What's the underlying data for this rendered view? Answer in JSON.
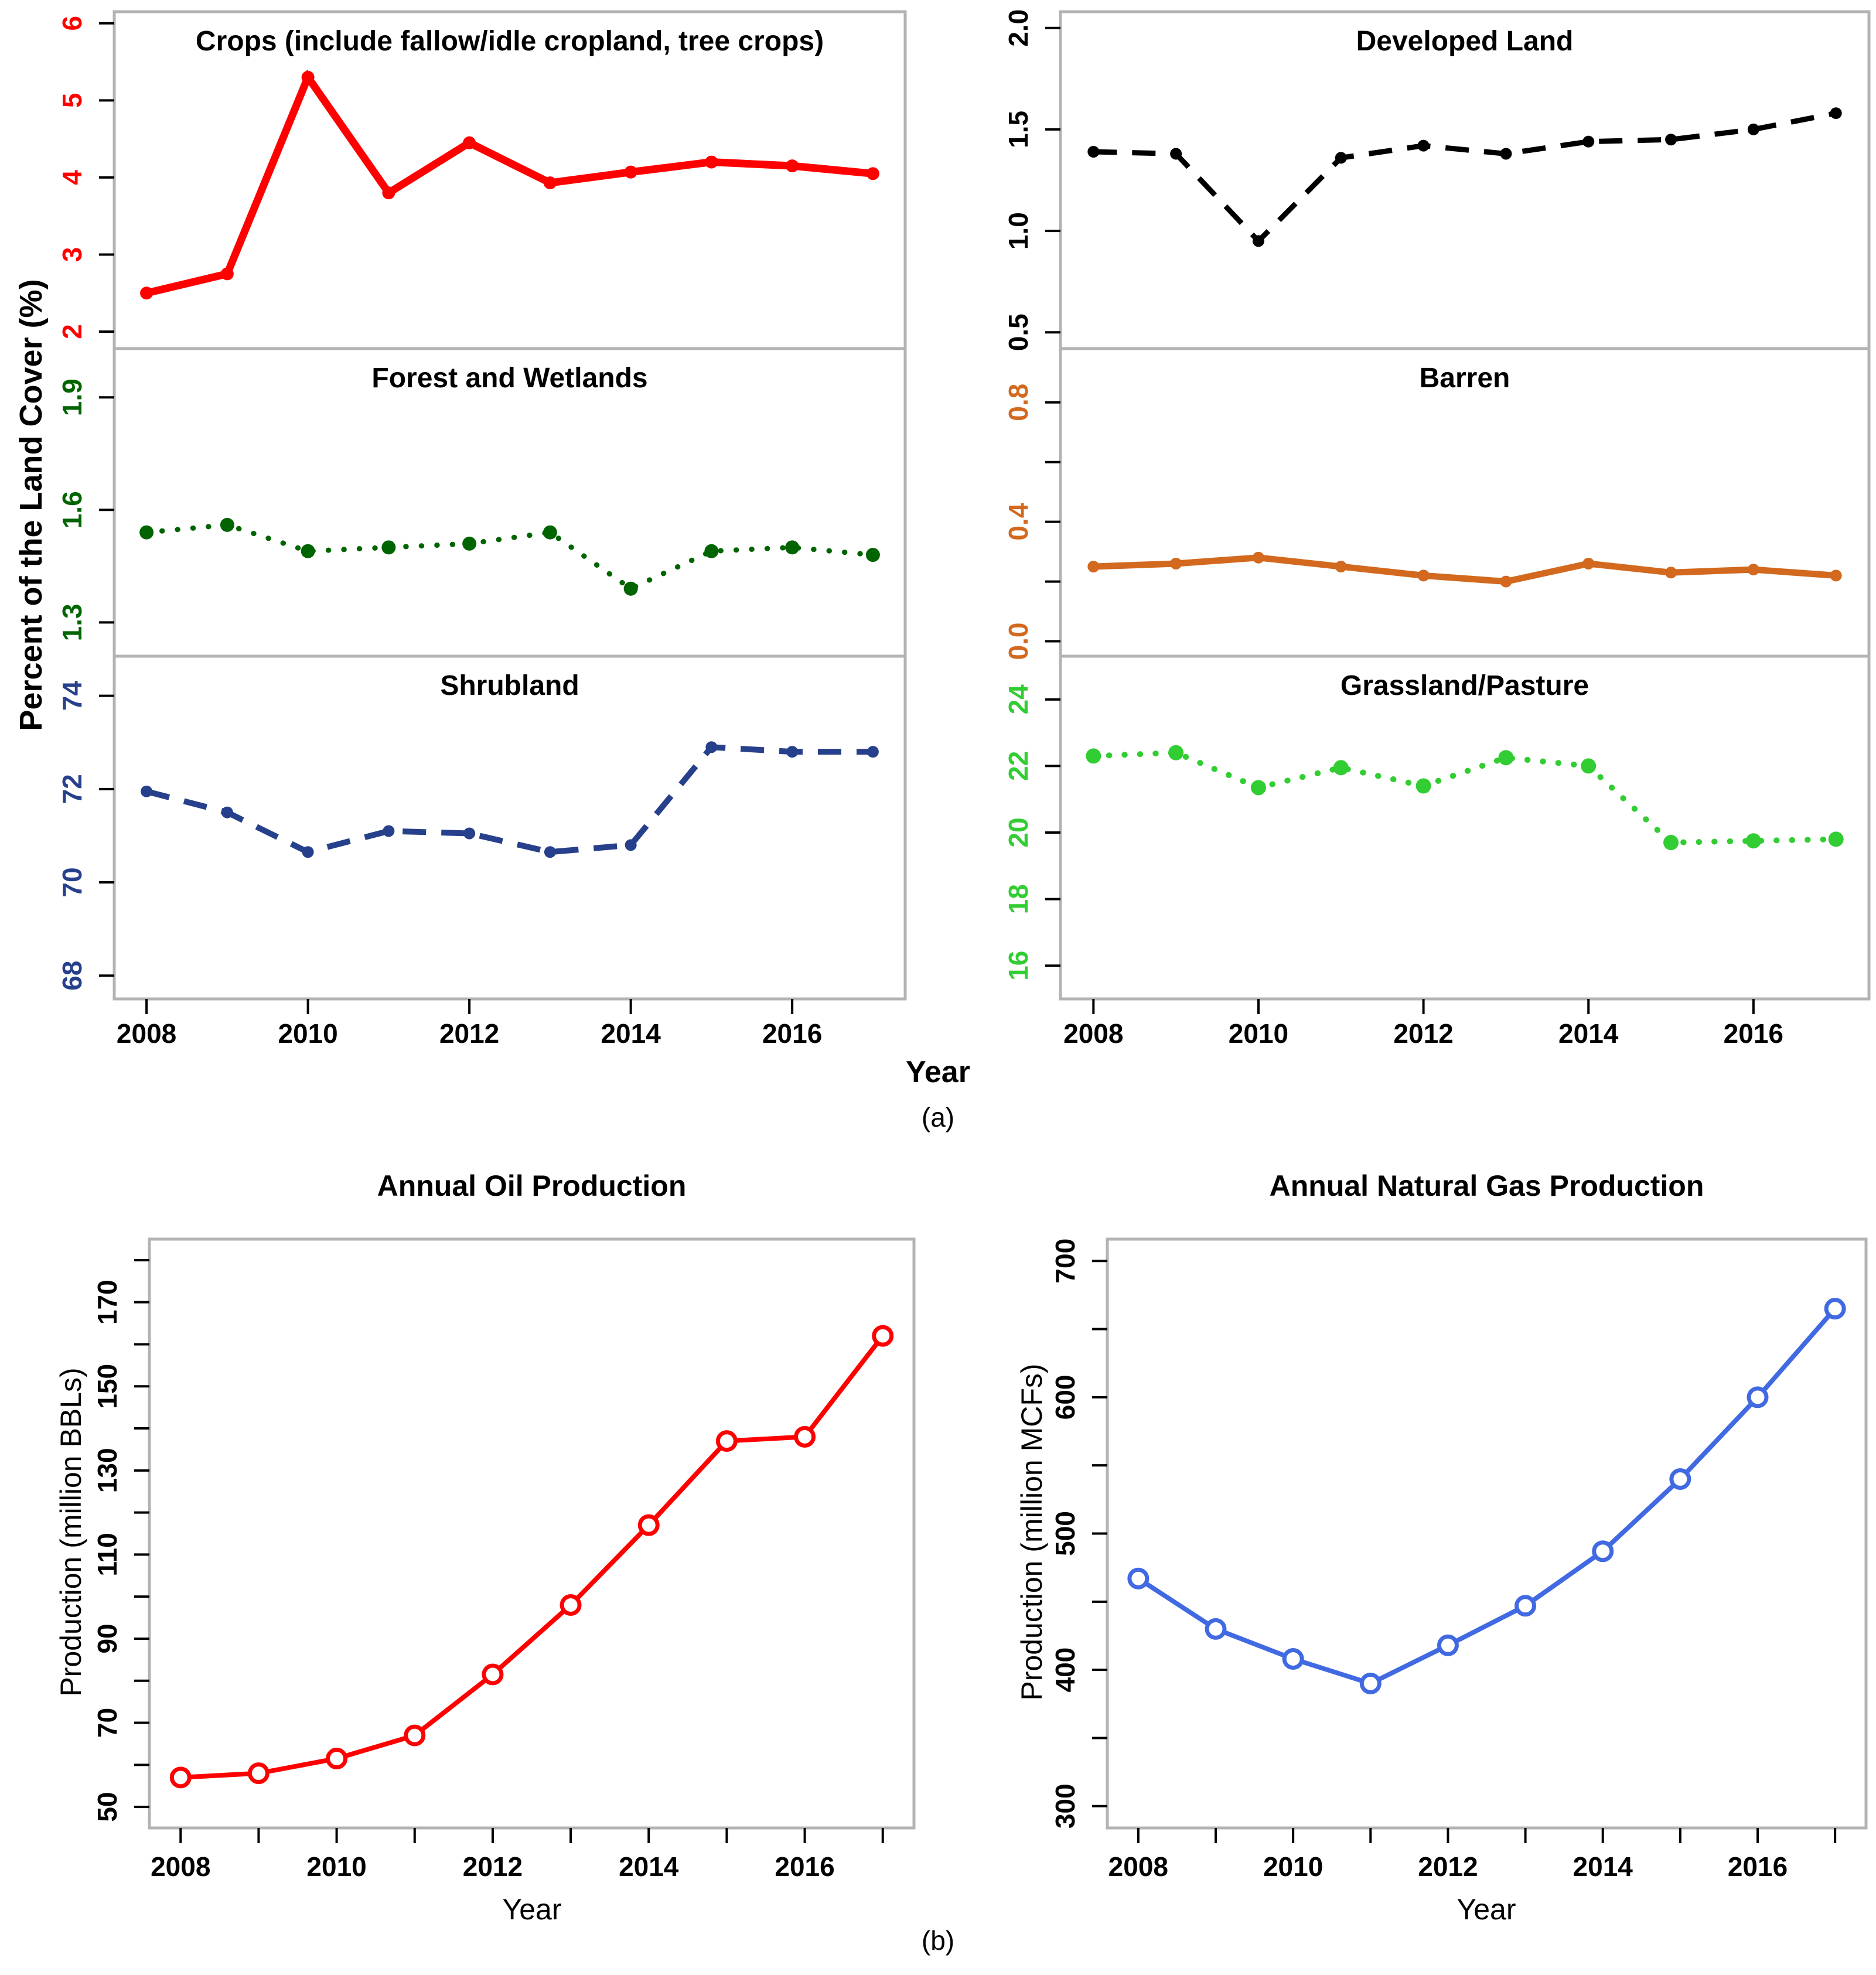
{
  "figure": {
    "panel_a_label": "(a)",
    "panel_b_label": "(b)",
    "panel_a": {
      "shared_y_label": "Percent of the Land Cover (%)",
      "x_label": "Year"
    },
    "panel_b": {
      "oil": {
        "y_label": "Production (million BBLs)",
        "x_label": "Year"
      },
      "gas": {
        "y_label": "Production (million MCFs)",
        "x_label": "Year"
      }
    }
  },
  "chart_data": [
    {
      "id": "crops",
      "type": "line",
      "panel": "a",
      "title": "Crops (include fallow/idle cropland, tree crops)",
      "x": [
        2008,
        2009,
        2010,
        2011,
        2012,
        2013,
        2014,
        2015,
        2016,
        2017
      ],
      "values": [
        2.5,
        2.75,
        5.3,
        3.8,
        4.45,
        3.93,
        4.07,
        4.2,
        4.15,
        4.05
      ],
      "color": "#ff0000",
      "line_style": "solid",
      "marker": "filled-circle",
      "xlim": [
        2007.6,
        2017.4
      ],
      "ylim": [
        1.78,
        6.15
      ],
      "yticks": [
        2,
        3,
        4,
        5,
        6
      ],
      "ytick_labels": [
        "2",
        "3",
        "4",
        "5",
        "6"
      ],
      "yticks_minor": [],
      "ytick_color": "#ff0000",
      "xticks": [
        2008,
        2010,
        2012,
        2014,
        2016
      ],
      "xtick_labels": [
        "2008",
        "2010",
        "2012",
        "2014",
        "2016"
      ],
      "xticks_minor": []
    },
    {
      "id": "developed",
      "type": "line",
      "panel": "a",
      "title": "Developed Land",
      "x": [
        2008,
        2009,
        2010,
        2011,
        2012,
        2013,
        2014,
        2015,
        2016,
        2017
      ],
      "values": [
        1.39,
        1.38,
        0.95,
        1.36,
        1.42,
        1.38,
        1.44,
        1.45,
        1.5,
        1.58
      ],
      "color": "#000000",
      "line_style": "dashed",
      "marker": "filled-circle",
      "xlim": [
        2007.6,
        2017.4
      ],
      "ylim": [
        0.42,
        2.08
      ],
      "yticks": [
        0.5,
        1.0,
        1.5,
        2.0
      ],
      "ytick_labels": [
        "0.5",
        "1.0",
        "1.5",
        "2.0"
      ],
      "yticks_minor": [],
      "ytick_color": "#000000",
      "xticks": [
        2008,
        2010,
        2012,
        2014,
        2016
      ],
      "xtick_labels": [
        "2008",
        "2010",
        "2012",
        "2014",
        "2016"
      ],
      "xticks_minor": []
    },
    {
      "id": "forest",
      "type": "line",
      "panel": "a",
      "title": "Forest and Wetlands",
      "x": [
        2008,
        2009,
        2010,
        2011,
        2012,
        2013,
        2014,
        2015,
        2016,
        2017
      ],
      "values": [
        1.54,
        1.56,
        1.49,
        1.5,
        1.51,
        1.54,
        1.39,
        1.49,
        1.5,
        1.48
      ],
      "color": "#006400",
      "line_style": "dotted",
      "marker": "filled-circle",
      "xlim": [
        2007.6,
        2017.4
      ],
      "ylim": [
        1.21,
        2.03
      ],
      "yticks": [
        1.3,
        1.6,
        1.9
      ],
      "ytick_labels": [
        "1.3",
        "1.6",
        "1.9"
      ],
      "yticks_minor": [],
      "ytick_color": "#006400",
      "xticks": [
        2008,
        2010,
        2012,
        2014,
        2016
      ],
      "xtick_labels": [
        "2008",
        "2010",
        "2012",
        "2014",
        "2016"
      ],
      "xticks_minor": []
    },
    {
      "id": "barren",
      "type": "line",
      "panel": "a",
      "title": "Barren",
      "x": [
        2008,
        2009,
        2010,
        2011,
        2012,
        2013,
        2014,
        2015,
        2016,
        2017
      ],
      "values": [
        0.25,
        0.26,
        0.28,
        0.25,
        0.22,
        0.2,
        0.26,
        0.23,
        0.24,
        0.22
      ],
      "color": "#d2691e",
      "line_style": "solid",
      "marker": "filled-circle",
      "xlim": [
        2007.6,
        2017.4
      ],
      "ylim": [
        -0.05,
        0.98
      ],
      "yticks": [
        0.0,
        0.4,
        0.8
      ],
      "ytick_labels": [
        "0.0",
        "0.4",
        "0.8"
      ],
      "yticks_minor": [
        0.2,
        0.6
      ],
      "ytick_color": "#d2691e",
      "xticks": [
        2008,
        2010,
        2012,
        2014,
        2016
      ],
      "xtick_labels": [
        "2008",
        "2010",
        "2012",
        "2014",
        "2016"
      ],
      "xticks_minor": []
    },
    {
      "id": "shrubland",
      "type": "line",
      "panel": "a",
      "title": "Shrubland",
      "x": [
        2008,
        2009,
        2010,
        2011,
        2012,
        2013,
        2014,
        2015,
        2016,
        2017
      ],
      "values": [
        71.95,
        71.5,
        70.65,
        71.1,
        71.05,
        70.65,
        70.8,
        72.9,
        72.8,
        72.8
      ],
      "color": "#27408b",
      "line_style": "dashed",
      "marker": "filled-circle",
      "xlim": [
        2007.6,
        2017.4
      ],
      "ylim": [
        67.5,
        74.85
      ],
      "yticks": [
        68,
        70,
        72,
        74
      ],
      "ytick_labels": [
        "68",
        "70",
        "72",
        "74"
      ],
      "yticks_minor": [],
      "ytick_color": "#27408b",
      "xticks": [
        2008,
        2010,
        2012,
        2014,
        2016
      ],
      "xtick_labels": [
        "2008",
        "2010",
        "2012",
        "2014",
        "2016"
      ],
      "xticks_minor": []
    },
    {
      "id": "grassland",
      "type": "line",
      "panel": "a",
      "title": "Grassland/Pasture",
      "x": [
        2008,
        2009,
        2010,
        2011,
        2012,
        2013,
        2014,
        2015,
        2016,
        2017
      ],
      "values": [
        22.3,
        22.4,
        21.35,
        21.95,
        21.4,
        22.25,
        22.0,
        19.7,
        19.75,
        19.8
      ],
      "color": "#32cd32",
      "line_style": "dotted",
      "marker": "filled-circle",
      "xlim": [
        2007.6,
        2017.4
      ],
      "ylim": [
        15.0,
        25.3
      ],
      "yticks": [
        16,
        18,
        20,
        22,
        24
      ],
      "ytick_labels": [
        "16",
        "18",
        "20",
        "22",
        "24"
      ],
      "yticks_minor": [],
      "ytick_color": "#32cd32",
      "xticks": [
        2008,
        2010,
        2012,
        2014,
        2016
      ],
      "xtick_labels": [
        "2008",
        "2010",
        "2012",
        "2014",
        "2016"
      ],
      "xticks_minor": []
    },
    {
      "id": "oil",
      "type": "line",
      "panel": "b",
      "title": "Annual Oil Production",
      "xlabel": "Year",
      "ylabel": "Production (million BBLs)",
      "x": [
        2008,
        2009,
        2010,
        2011,
        2012,
        2013,
        2014,
        2015,
        2016,
        2017
      ],
      "values": [
        57,
        58,
        61.5,
        67,
        81.5,
        98,
        117,
        137,
        138,
        162
      ],
      "color": "#ff0000",
      "line_style": "solid",
      "marker": "open-circle",
      "xlim": [
        2007.6,
        2017.4
      ],
      "ylim": [
        45,
        185
      ],
      "yticks": [
        50,
        70,
        90,
        110,
        130,
        150,
        170
      ],
      "ytick_labels": [
        "50",
        "70",
        "90",
        "110",
        "130",
        "150",
        "170"
      ],
      "yticks_minor": [
        60,
        80,
        100,
        120,
        140,
        160,
        180
      ],
      "ytick_color": "#000000",
      "xticks": [
        2008,
        2010,
        2012,
        2014,
        2016
      ],
      "xtick_labels": [
        "2008",
        "2010",
        "2012",
        "2014",
        "2016"
      ],
      "xticks_minor": [
        2009,
        2011,
        2013,
        2015,
        2017
      ]
    },
    {
      "id": "gas",
      "type": "line",
      "panel": "b",
      "title": "Annual Natural Gas Production",
      "xlabel": "Year",
      "ylabel": "Production (million MCFs)",
      "x": [
        2008,
        2009,
        2010,
        2011,
        2012,
        2013,
        2014,
        2015,
        2016,
        2017
      ],
      "values": [
        467,
        430,
        408,
        390,
        418,
        447,
        487,
        540,
        600,
        665
      ],
      "color": "#4169e1",
      "line_style": "solid",
      "marker": "open-circle",
      "xlim": [
        2007.6,
        2017.4
      ],
      "ylim": [
        284,
        716
      ],
      "yticks": [
        300,
        400,
        500,
        600,
        700
      ],
      "ytick_labels": [
        "300",
        "400",
        "500",
        "600",
        "700"
      ],
      "yticks_minor": [
        350,
        450,
        550,
        650
      ],
      "ytick_color": "#000000",
      "xticks": [
        2008,
        2010,
        2012,
        2014,
        2016
      ],
      "xtick_labels": [
        "2008",
        "2010",
        "2012",
        "2014",
        "2016"
      ],
      "xticks_minor": [
        2009,
        2011,
        2013,
        2015,
        2017
      ]
    }
  ]
}
